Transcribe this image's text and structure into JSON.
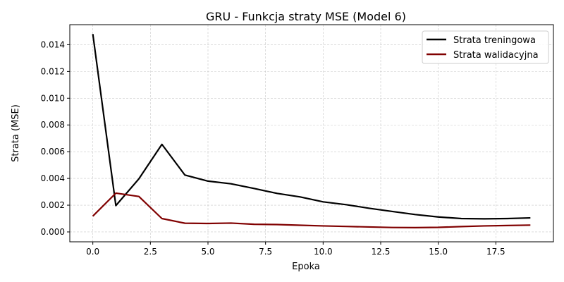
{
  "chart_data": {
    "type": "line",
    "title": "GRU - Funkcja straty MSE (Model 6)",
    "xlabel": "Epoka",
    "ylabel": "Strata (MSE)",
    "xlim": [
      -1.0,
      20.0
    ],
    "ylim": [
      -0.00074,
      0.0155
    ],
    "x_ticks": [
      0.0,
      2.5,
      5.0,
      7.5,
      10.0,
      12.5,
      15.0,
      17.5
    ],
    "x_tick_labels": [
      "0.0",
      "2.5",
      "5.0",
      "7.5",
      "10.0",
      "12.5",
      "15.0",
      "17.5"
    ],
    "y_ticks": [
      0.0,
      0.002,
      0.004,
      0.006,
      0.008,
      0.01,
      0.012,
      0.014
    ],
    "y_tick_labels": [
      "0.000",
      "0.002",
      "0.004",
      "0.006",
      "0.008",
      "0.010",
      "0.012",
      "0.014"
    ],
    "grid": true,
    "legend_position": "top-right",
    "x": [
      0,
      1,
      2,
      3,
      4,
      5,
      6,
      7,
      8,
      9,
      10,
      11,
      12,
      13,
      14,
      15,
      16,
      17,
      18,
      19
    ],
    "series": [
      {
        "name": "Strata treningowa",
        "color": "#000000",
        "values": [
          0.0148,
          0.00197,
          0.00397,
          0.00655,
          0.00425,
          0.0038,
          0.0036,
          0.00325,
          0.00288,
          0.00262,
          0.00225,
          0.00204,
          0.00177,
          0.00153,
          0.0013,
          0.00112,
          0.001,
          0.00098,
          0.001,
          0.00105
        ]
      },
      {
        "name": "Strata walidacyjna",
        "color": "#800000",
        "values": [
          0.00118,
          0.0029,
          0.00265,
          0.001,
          0.00065,
          0.00063,
          0.00066,
          0.00057,
          0.00055,
          0.0005,
          0.00045,
          0.00041,
          0.00037,
          0.00033,
          0.00032,
          0.00034,
          0.0004,
          0.00045,
          0.00048,
          0.00051
        ]
      }
    ]
  }
}
